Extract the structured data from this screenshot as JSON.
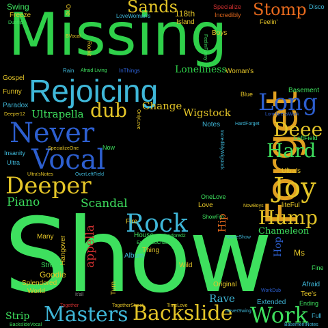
{
  "words": {
    "missing": "Missing",
    "show": "Show",
    "rejoicing": "Rejoicing",
    "forget": "Forget",
    "never": "Never",
    "vocal": "Vocal",
    "deeper": "Deeper",
    "rock": "Rock",
    "joy": "Joy",
    "long": "Long",
    "deee": "Deee",
    "hard": "Hard",
    "hump": "Hump",
    "stomp": "Stomp",
    "sands": "Sands",
    "dub": "dub",
    "masters": "Masters",
    "backslide": "Backslide",
    "work": "Work",
    "ultrapella": "Ultrapella",
    "piano": "Piano",
    "scandal": "Scandal",
    "change": "Change",
    "wigstock": "Wigstock",
    "loneliness": "Loneliness",
    "appella": "appella",
    "chameleon": "Chameleon",
    "strip": "Strip",
    "rave": "Rave",
    "hip": "Hip",
    "hop": "Hop",
    "swing": "Swing",
    "freeze": "Freeze",
    "disco": "Disco",
    "specialize": "Specialize",
    "incredibly": "Incredibly",
    "n118th": "118th",
    "island": "Island",
    "boys": "Boys",
    "gospel": "Gospel",
    "funny": "Funny",
    "paradox": "Paradox",
    "ultra": "Ultra",
    "insanity": "Insanity",
    "womans": "Woman's",
    "blue": "Blue",
    "basement": "Basement",
    "notes": "Notes",
    "ultras": "Ultra's",
    "leftfield": "LeftField",
    "love": "Love",
    "liteful": "liteFul",
    "fire": "Fire",
    "hangover": "Hangover",
    "many": "Many",
    "house": "House",
    "thing": "Thing",
    "album": "Album",
    "turn": "Turn",
    "goodie": "Goodie",
    "street": "Street",
    "splendored": "Splendored",
    "world": "World",
    "original": "Original",
    "wild": "Wild",
    "extended": "Extended",
    "afraid": "Afraid",
    "tees": "Tee's",
    "ending": "Ending",
    "ms": "Ms",
    "fine": "Fine",
    "full": "Full",
    "rain": "Rain",
    "one": "One",
    "rockit": "Rockit",
    "feelin": "Feelin'",
    "now": "Now",
    "loveWomans": "LoveWoman's",
    "dubflip": "Dubflip",
    "bvocal": "BVocal",
    "afraidLiving": "Afraid Living",
    "inthings": "InThings",
    "lonelinesswork": "LonelinessWork",
    "hardforget": "HardForget",
    "oneLove": "OneLove",
    "nowboys": "NowBoys",
    "showfm": "ShowFm",
    "splendored2": "Splendored2",
    "deeper12": "Deeper12",
    "ultrasnotes": "Ultra'sNotes",
    "overleftfield": "OverLeftField",
    "specializeone": "SpecializeOne",
    "youreshow": "You'reShow",
    "timelove": "TimeLove",
    "togetherstreet": "TogetherStreet",
    "together": "Together",
    "itall": "It'all",
    "neverswing": "NeverSwing",
    "workdub": "WorkDub",
    "backslidevocal": "BackslideVocal",
    "extendedchange": "ExtendedChange",
    "basementnotes": "BasementNotes",
    "incrediblywigstock": "IncrediblyWigstock",
    "feelinfunny": "FeelinFunny",
    "onlylove": "OnlyLove"
  },
  "colors": {
    "background": "#000000",
    "green": "#3ee05e",
    "yellow": "#e4c528",
    "blue": "#2d5fd0",
    "cyan": "#3fb7d8",
    "orange": "#e86a1d",
    "red": "#d03030"
  }
}
